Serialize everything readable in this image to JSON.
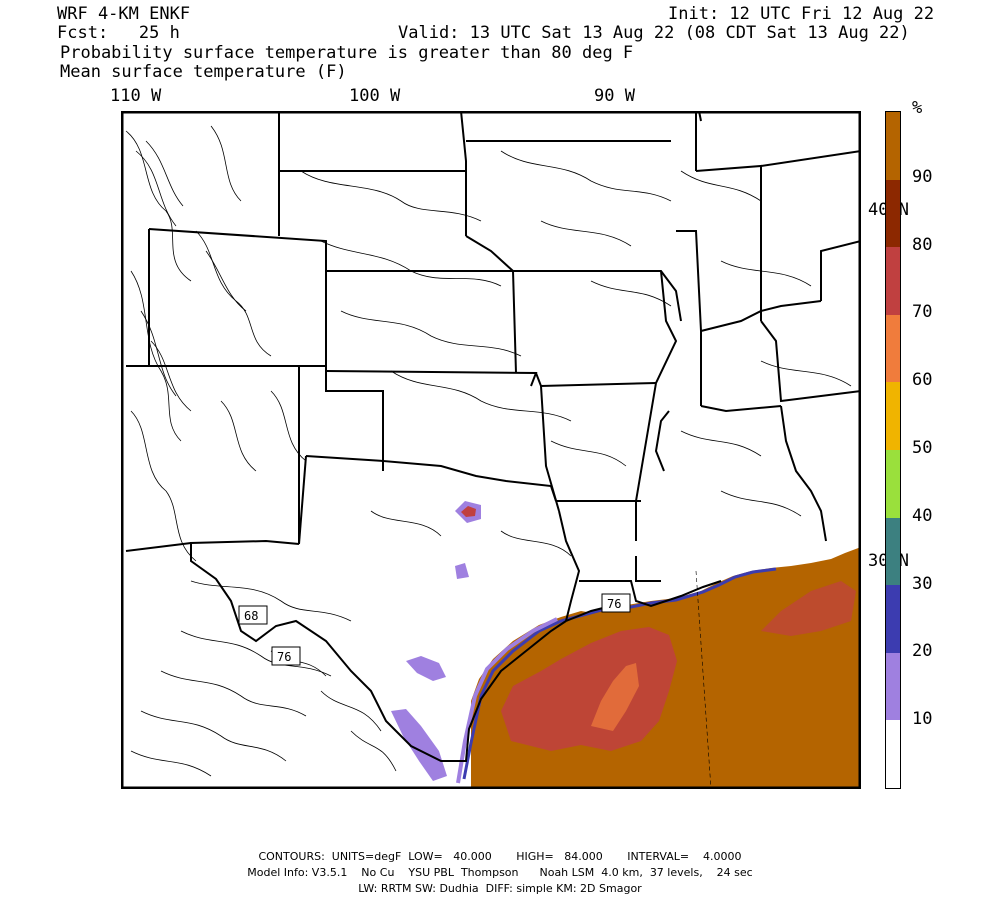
{
  "header": {
    "model": "WRF 4-KM ENKF",
    "init": "Init: 12 UTC Fri 12 Aug 22",
    "fcst": "Fcst:   25 h",
    "valid": "Valid: 13 UTC Sat 13 Aug 22 (08 CDT Sat 13 Aug 22)",
    "field1": "Probability surface temperature is greater than 80 deg F",
    "field2": "Mean surface temperature (F)"
  },
  "map": {
    "lon_labels": [
      "110 W",
      "100 W",
      "90 W"
    ],
    "lat_labels": [
      "40 N",
      "30 N"
    ],
    "contour_labels": [
      "68",
      "76",
      "76"
    ]
  },
  "colorbar": {
    "unit": "%",
    "ticks": [
      "10",
      "20",
      "30",
      "40",
      "50",
      "60",
      "70",
      "80",
      "90"
    ],
    "colors": [
      "#ffffff",
      "#9f80e0",
      "#3c3cb0",
      "#3c8080",
      "#9ae03c",
      "#f0b400",
      "#f07c3c",
      "#c04040",
      "#8c2800",
      "#b46400"
    ]
  },
  "footer": {
    "line1": "CONTOURS:  UNITS=degF  LOW=   40.000       HIGH=   84.000       INTERVAL=    4.0000",
    "line2": "Model Info: V3.5.1    No Cu    YSU PBL  Thompson      Noah LSM  4.0 km,  37 levels,    24 sec",
    "line3": "LW: RRTM SW: Dudhia  DIFF: simple KM: 2D Smagor"
  }
}
